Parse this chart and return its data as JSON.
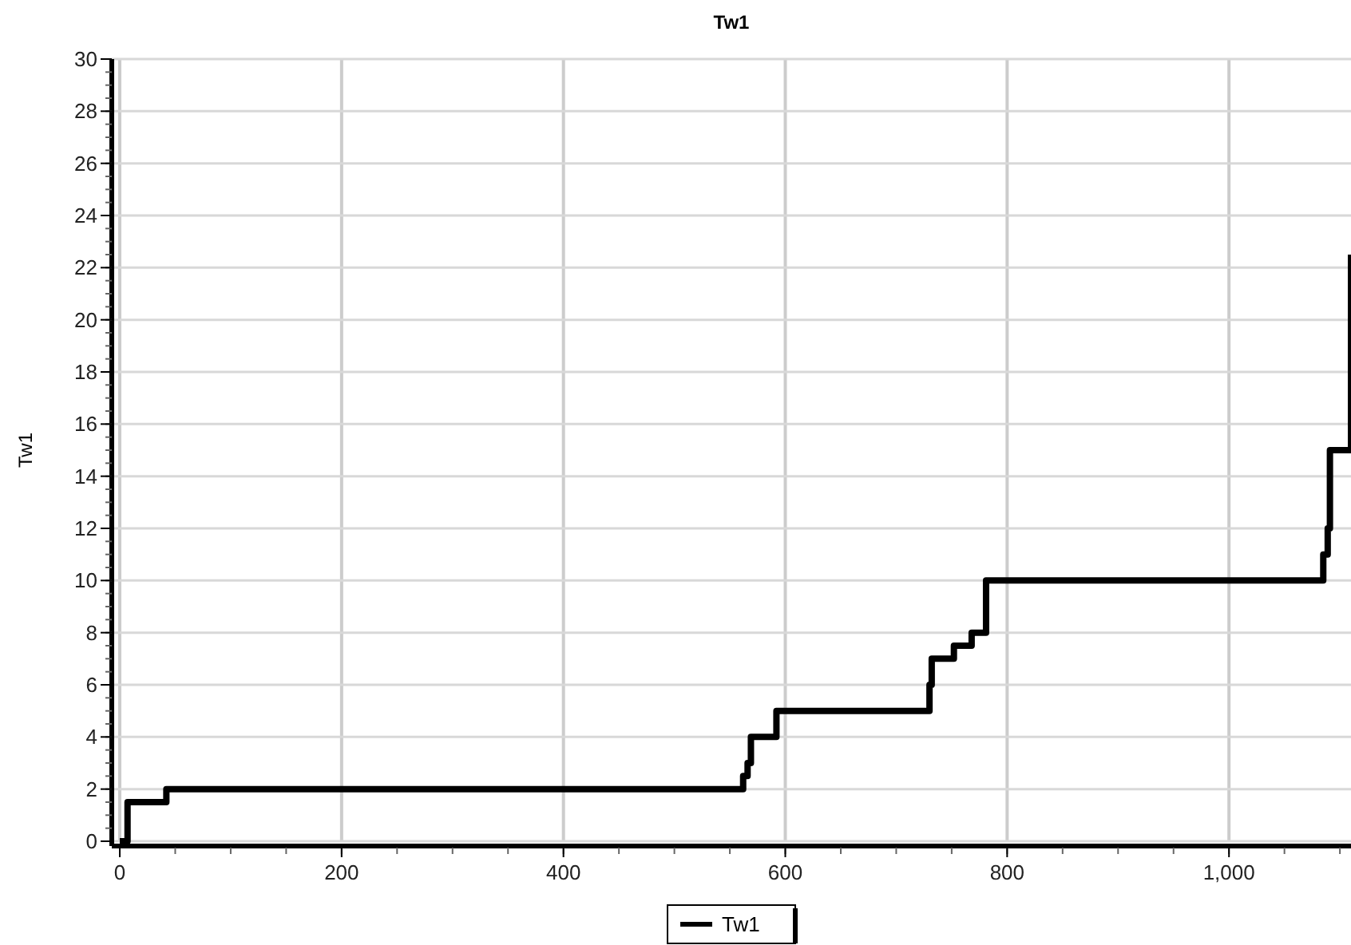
{
  "chart_data": {
    "type": "step",
    "title": "Tw1",
    "ylabel": "Tw1",
    "xlim": [
      0,
      1110
    ],
    "xticks": [
      0,
      200,
      400,
      600,
      800,
      {
        "value": 1000,
        "label": "1,000"
      }
    ],
    "ylim": [
      0,
      30
    ],
    "yticks": [
      0,
      2,
      4,
      6,
      8,
      10,
      12,
      14,
      16,
      18,
      20,
      22,
      24,
      26,
      28,
      30
    ],
    "grid": true,
    "legend": "bottom",
    "line_style": "solid",
    "marker": "none",
    "series": [
      {
        "name": "Tw1",
        "color": "#000000",
        "x": [
          0,
          7,
          42,
          562,
          566,
          569,
          592,
          730,
          732,
          752,
          768,
          781,
          1085,
          1089,
          1091,
          1110
        ],
        "values": [
          0,
          1.5,
          2,
          2.5,
          3,
          4,
          5,
          6,
          7,
          7.5,
          8,
          10,
          11,
          12,
          15,
          22.5
        ]
      }
    ]
  }
}
